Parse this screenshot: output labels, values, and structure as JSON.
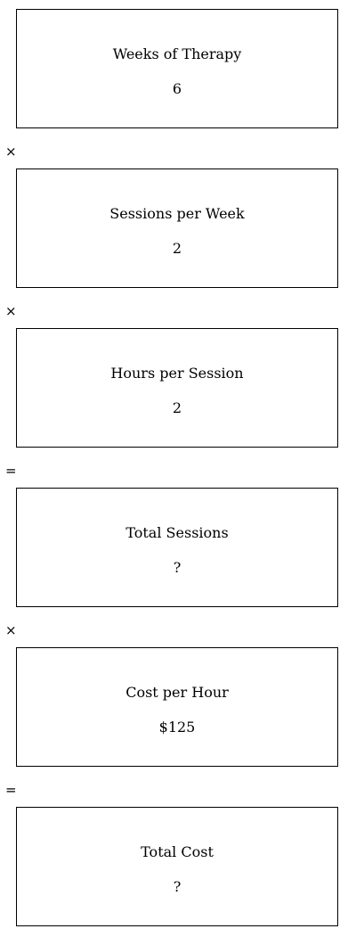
{
  "steps": [
    {
      "label": "Weeks of Therapy",
      "value": "6"
    },
    {
      "label": "Sessions per Week",
      "value": "2"
    },
    {
      "label": "Hours per Session",
      "value": "2"
    },
    {
      "label": "Total Sessions",
      "value": "?"
    },
    {
      "label": "Cost per Hour",
      "value": "$125"
    },
    {
      "label": "Total Cost",
      "value": "?"
    }
  ],
  "operators": [
    "×",
    "×",
    "=",
    "×",
    "="
  ]
}
